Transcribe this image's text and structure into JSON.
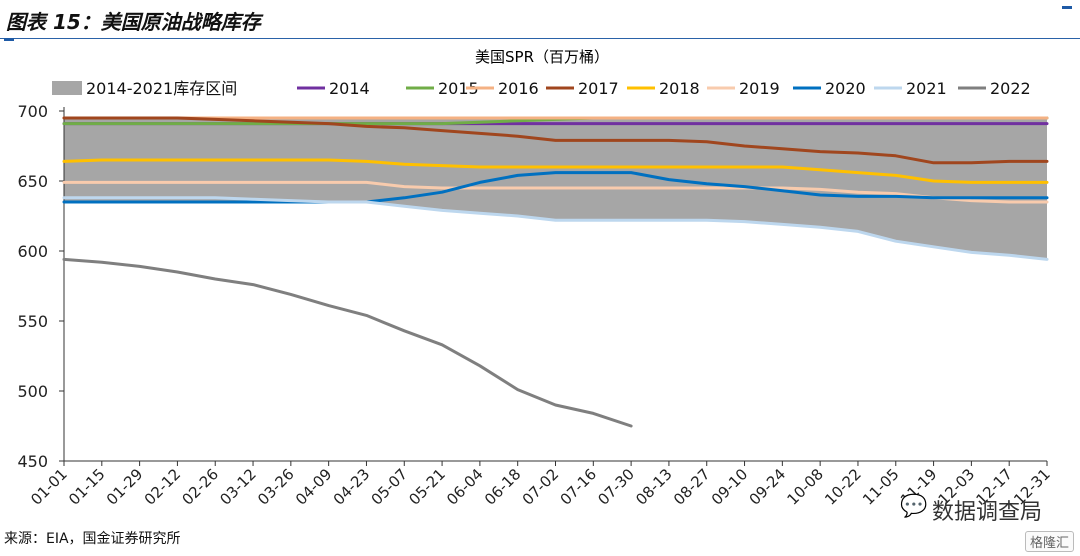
{
  "figure_title": "图表 15：美国原油战略库存",
  "source": "来源：EIA，国金证券研究所",
  "watermark": "数据调查局",
  "watermark_icon": "wechat-icon",
  "badge": "格隆汇",
  "colors": {
    "band": "#a6a6a6",
    "2014": "#7030a0",
    "2015": "#70ad47",
    "2016": "#f4b183",
    "2017": "#a0461e",
    "2018": "#ffc000",
    "2019": "#f8cbad",
    "2020": "#0070c0",
    "2021": "#bdd7ee",
    "2022": "#7f7f7f"
  },
  "chart_data": {
    "type": "line",
    "title": "美国SPR（百万桶）",
    "ylim": [
      450,
      700
    ],
    "yticks": [
      450,
      500,
      550,
      600,
      650,
      700
    ],
    "x_labels": [
      "01-01",
      "01-15",
      "01-29",
      "02-12",
      "02-26",
      "03-12",
      "03-26",
      "04-09",
      "04-23",
      "05-07",
      "05-21",
      "06-04",
      "06-18",
      "07-02",
      "07-16",
      "07-30",
      "08-13",
      "08-27",
      "09-10",
      "09-24",
      "10-08",
      "10-22",
      "11-05",
      "11-19",
      "12-03",
      "12-17",
      "12-31"
    ],
    "band": {
      "name": "2014-2021库存区间",
      "upper": [
        696,
        696,
        696,
        696,
        696,
        696,
        696,
        696,
        695,
        695,
        695,
        695,
        695,
        695,
        695,
        695,
        695,
        695,
        695,
        695,
        695,
        695,
        695,
        695,
        695,
        695,
        695
      ],
      "lower": [
        635,
        635,
        635,
        635,
        635,
        635,
        635,
        635,
        635,
        632,
        629,
        627,
        625,
        622,
        622,
        622,
        622,
        622,
        621,
        619,
        617,
        614,
        607,
        603,
        599,
        597,
        594
      ]
    },
    "series": [
      {
        "name": "2014",
        "values": [
          691,
          691,
          691,
          691,
          691,
          691,
          691,
          691,
          691,
          691,
          691,
          691,
          691,
          691,
          691,
          691,
          691,
          691,
          691,
          691,
          691,
          691,
          691,
          691,
          691,
          691,
          691
        ]
      },
      {
        "name": "2015",
        "values": [
          691,
          691,
          691,
          691,
          691,
          691,
          691,
          691,
          691,
          691,
          691,
          692,
          693,
          694,
          695,
          695,
          695,
          695,
          695,
          695,
          695,
          695,
          695,
          695,
          695,
          695,
          695
        ]
      },
      {
        "name": "2016",
        "values": [
          695,
          695,
          695,
          695,
          695,
          695,
          695,
          695,
          695,
          695,
          695,
          695,
          695,
          695,
          695,
          695,
          695,
          695,
          695,
          695,
          695,
          695,
          695,
          695,
          695,
          695,
          695
        ]
      },
      {
        "name": "2017",
        "values": [
          695,
          695,
          695,
          695,
          694,
          693,
          692,
          691,
          689,
          688,
          686,
          684,
          682,
          679,
          679,
          679,
          679,
          678,
          675,
          673,
          671,
          670,
          668,
          663,
          663,
          664,
          664
        ]
      },
      {
        "name": "2018",
        "values": [
          664,
          665,
          665,
          665,
          665,
          665,
          665,
          665,
          664,
          662,
          661,
          660,
          660,
          660,
          660,
          660,
          660,
          660,
          660,
          660,
          658,
          656,
          654,
          650,
          649,
          649,
          649
        ]
      },
      {
        "name": "2019",
        "values": [
          649,
          649,
          649,
          649,
          649,
          649,
          649,
          649,
          649,
          646,
          645,
          645,
          645,
          645,
          645,
          645,
          645,
          645,
          645,
          645,
          644,
          642,
          641,
          638,
          636,
          635,
          635
        ]
      },
      {
        "name": "2020",
        "values": [
          635,
          635,
          635,
          635,
          635,
          635,
          635,
          635,
          635,
          638,
          642,
          649,
          654,
          656,
          656,
          656,
          651,
          648,
          646,
          643,
          640,
          639,
          639,
          638,
          638,
          638,
          638
        ]
      },
      {
        "name": "2021",
        "values": [
          638,
          638,
          638,
          638,
          638,
          637,
          636,
          635,
          635,
          632,
          629,
          627,
          625,
          622,
          622,
          622,
          622,
          622,
          621,
          619,
          617,
          614,
          607,
          603,
          599,
          597,
          594
        ]
      },
      {
        "name": "2022",
        "values": [
          594,
          592,
          589,
          585,
          580,
          576,
          569,
          561,
          554,
          543,
          533,
          518,
          501,
          490,
          484,
          475
        ]
      }
    ]
  }
}
